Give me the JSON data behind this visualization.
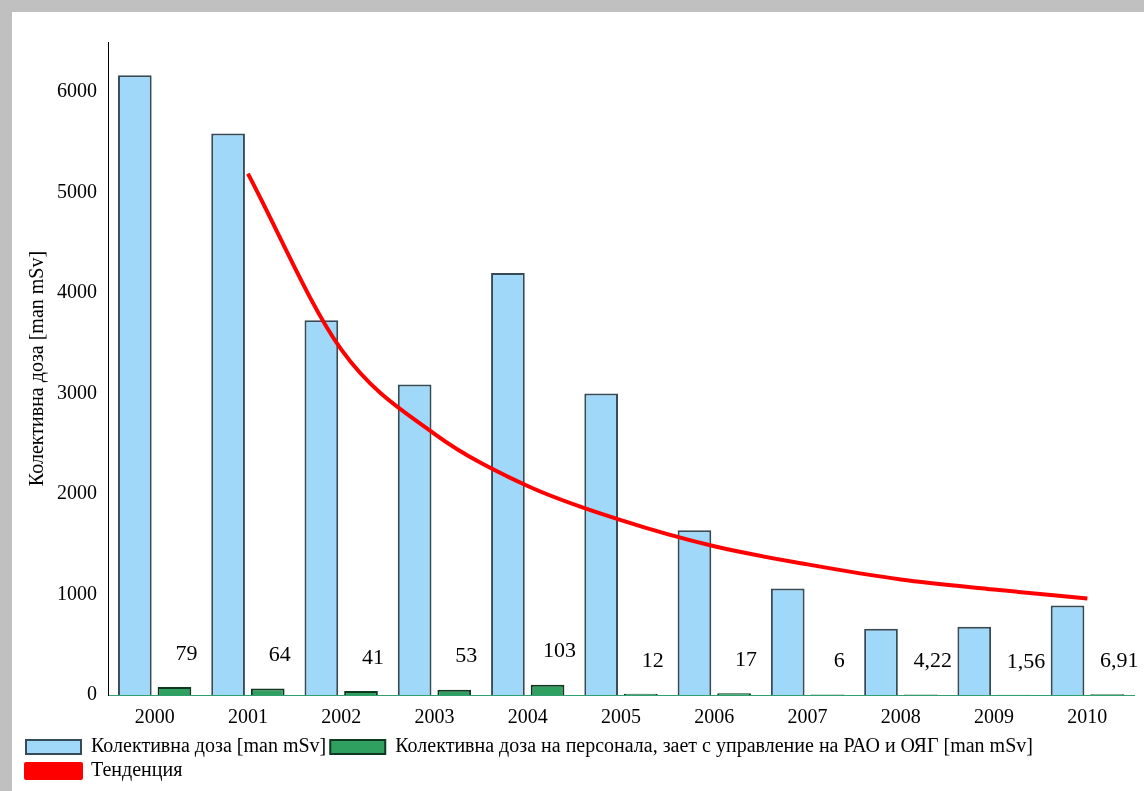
{
  "chart_data": {
    "type": "bar",
    "ylabel": "Колективна доза [man mSv]",
    "categories": [
      "2000",
      "2001",
      "2002",
      "2003",
      "2004",
      "2005",
      "2006",
      "2007",
      "2008",
      "2009",
      "2010"
    ],
    "series": [
      {
        "name": "Колективна доза [man mSv]",
        "color": "#9fd8f8",
        "values": [
          6170,
          5590,
          3730,
          3090,
          4200,
          3000,
          1640,
          1060,
          660,
          680,
          890
        ]
      },
      {
        "name": "Колективна доза на персонала, зает с управление на РАО и ОЯГ [man mSv]",
        "color": "#2fa060",
        "values": [
          79,
          64,
          41,
          53,
          103,
          12,
          17,
          6,
          4.22,
          1.56,
          6.91
        ],
        "value_labels": [
          "79",
          "64",
          "41",
          "53",
          "103",
          "12",
          "17",
          "6",
          "4,22",
          "1,56",
          "6,91"
        ]
      },
      {
        "name": "Тенденция",
        "type": "line",
        "color": "#ff0000",
        "values": [
          null,
          5190,
          3440,
          2600,
          2080,
          1740,
          1480,
          1300,
          1150,
          1050,
          960
        ]
      }
    ],
    "ylim": [
      0,
      6500
    ],
    "yticks": [
      0,
      1000,
      2000,
      3000,
      4000,
      5000,
      6000
    ],
    "grid": false,
    "legend": "bottom",
    "marker": "none"
  }
}
